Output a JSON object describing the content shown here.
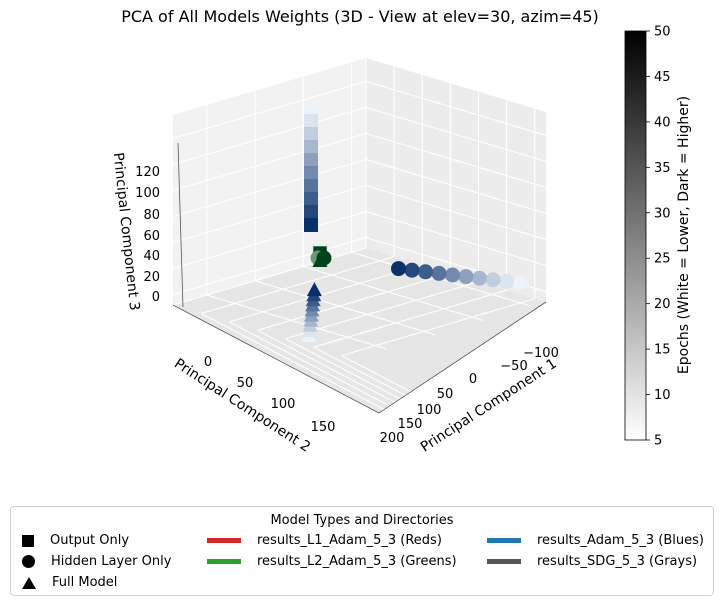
{
  "chart_data": {
    "type": "scatter",
    "projection": "3d",
    "title": "PCA of All Models Weights (3D - View at elev=30, azim=45)",
    "xlabel": "Principal Component 1",
    "ylabel": "Principal Component 2",
    "zlabel": "Principal Component 3",
    "view": {
      "elev": 30,
      "azim": 45
    },
    "grid": true,
    "x_ticks": [
      "200",
      "150",
      "100",
      "50",
      "0",
      "−50",
      "−100"
    ],
    "y_ticks": [
      "0",
      "50",
      "100",
      "150"
    ],
    "z_ticks": [
      "0",
      "20",
      "40",
      "60",
      "80",
      "100",
      "120"
    ],
    "colorbar": {
      "label": "Epochs (White = Lower, Dark = Higher)",
      "min": 5,
      "max": 50,
      "ticks": [
        "5",
        "10",
        "15",
        "20",
        "25",
        "30",
        "35",
        "40",
        "45",
        "50"
      ]
    },
    "series": [
      {
        "name": "results_Adam_5_3 (Blues)",
        "marker": "square",
        "subset": "Output Only",
        "epochs": [
          5,
          10,
          15,
          20,
          25,
          30,
          35,
          40,
          45,
          50
        ],
        "points": [
          {
            "x": 55,
            "y": 0,
            "z": 128
          },
          {
            "x": 55,
            "y": 0,
            "z": 122
          },
          {
            "x": 55,
            "y": 0,
            "z": 116
          },
          {
            "x": 55,
            "y": 0,
            "z": 110
          },
          {
            "x": 55,
            "y": 0,
            "z": 104
          },
          {
            "x": 55,
            "y": 0,
            "z": 96
          },
          {
            "x": 55,
            "y": 0,
            "z": 86
          },
          {
            "x": 55,
            "y": 0,
            "z": 75
          },
          {
            "x": 55,
            "y": 0,
            "z": 63
          },
          {
            "x": 55,
            "y": 0,
            "z": 50
          }
        ]
      },
      {
        "name": "results_Adam_5_3 (Blues)",
        "marker": "circle",
        "subset": "Hidden Layer Only",
        "epochs": [
          5,
          10,
          15,
          20,
          25,
          30,
          35,
          40,
          45,
          50
        ],
        "points": [
          {
            "x": -125,
            "y": 0,
            "z": 5
          },
          {
            "x": -122,
            "y": 0,
            "z": 5
          },
          {
            "x": -118,
            "y": 0,
            "z": 5
          },
          {
            "x": -112,
            "y": 0,
            "z": 5
          },
          {
            "x": -105,
            "y": 0,
            "z": 5
          },
          {
            "x": -95,
            "y": 0,
            "z": 5
          },
          {
            "x": -82,
            "y": 0,
            "z": 5
          },
          {
            "x": -66,
            "y": 0,
            "z": 5
          },
          {
            "x": -45,
            "y": 0,
            "z": 5
          },
          {
            "x": -18,
            "y": 0,
            "z": 5
          }
        ]
      },
      {
        "name": "results_Adam_5_3 (Blues)",
        "marker": "triangle",
        "subset": "Full Model",
        "epochs": [
          5,
          10,
          15,
          20,
          25,
          30,
          35,
          40,
          45,
          50
        ],
        "points": [
          {
            "x": 55,
            "y": 0,
            "z": -32
          },
          {
            "x": 55,
            "y": 0,
            "z": -28
          },
          {
            "x": 55,
            "y": 0,
            "z": -24
          },
          {
            "x": 55,
            "y": 0,
            "z": -20
          },
          {
            "x": 55,
            "y": 0,
            "z": -16
          },
          {
            "x": 55,
            "y": 0,
            "z": -12
          },
          {
            "x": 55,
            "y": 0,
            "z": -8
          },
          {
            "x": 55,
            "y": 0,
            "z": -3
          },
          {
            "x": 55,
            "y": 0,
            "z": 3
          },
          {
            "x": 55,
            "y": 0,
            "z": 12
          }
        ]
      },
      {
        "name": "results_L2_Adam_5_3 (Greens)",
        "marker": "square",
        "subset": "Output Only",
        "epochs": [
          5,
          50
        ],
        "points": [
          {
            "x": 55,
            "y": 0,
            "z": 42
          },
          {
            "x": 55,
            "y": 0,
            "z": 40
          }
        ]
      },
      {
        "name": "results_L2_Adam_5_3 (Greens)",
        "marker": "circle",
        "subset": "Hidden Layer Only",
        "epochs": [
          30,
          50
        ],
        "points": [
          {
            "x": 48,
            "y": 0,
            "z": 33
          },
          {
            "x": 52,
            "y": 0,
            "z": 32
          }
        ]
      },
      {
        "name": "results_L2_Adam_5_3 (Greens)",
        "marker": "triangle",
        "subset": "Full Model",
        "epochs": [
          50
        ],
        "points": [
          {
            "x": 55,
            "y": 0,
            "z": 30
          }
        ]
      }
    ],
    "legend": {
      "title": "Model Types and Directories",
      "placement": "bottom-center",
      "markers": [
        {
          "label": "Output Only",
          "shape": "square"
        },
        {
          "label": "Hidden Layer Only",
          "shape": "circle"
        },
        {
          "label": "Full Model",
          "shape": "triangle"
        }
      ],
      "directories": [
        {
          "label": "results_L1_Adam_5_3 (Reds)",
          "color": "#d62728"
        },
        {
          "label": "results_L2_Adam_5_3 (Greens)",
          "color": "#2ca02c"
        },
        {
          "label": "results_Adam_5_3 (Blues)",
          "color": "#1f77b4"
        },
        {
          "label": "results_SDG_5_3 (Grays)",
          "color": "#555555"
        }
      ]
    }
  }
}
